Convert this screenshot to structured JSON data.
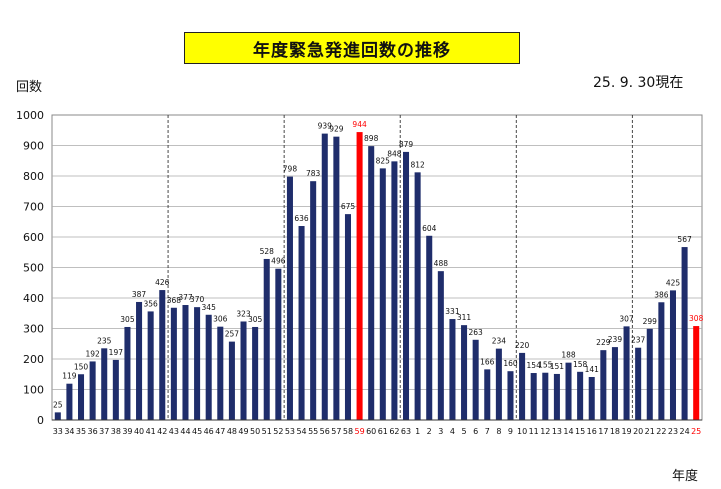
{
  "chart_data": {
    "type": "bar",
    "title": "年度緊急発進回数の推移",
    "ylabel": "回数",
    "xlabel": "年度",
    "date_note": "25. 9. 30現在",
    "ylim": [
      0,
      1000
    ],
    "yticks": [
      "0",
      "100",
      "200",
      "300",
      "400",
      "500",
      "600",
      "700",
      "800",
      "900",
      "1000"
    ],
    "grid": "horizontal",
    "categories": [
      "33",
      "34",
      "35",
      "36",
      "37",
      "38",
      "39",
      "40",
      "41",
      "42",
      "43",
      "44",
      "45",
      "46",
      "47",
      "48",
      "49",
      "50",
      "51",
      "52",
      "53",
      "54",
      "55",
      "56",
      "57",
      "58",
      "59",
      "60",
      "61",
      "62",
      "63",
      "1",
      "2",
      "3",
      "4",
      "5",
      "6",
      "7",
      "8",
      "9",
      "10",
      "11",
      "12",
      "13",
      "14",
      "15",
      "16",
      "17",
      "18",
      "19",
      "20",
      "21",
      "22",
      "23",
      "24",
      "25"
    ],
    "values": [
      25,
      119,
      150,
      192,
      235,
      197,
      305,
      387,
      356,
      426,
      368,
      377,
      370,
      345,
      306,
      257,
      323,
      305,
      528,
      496,
      798,
      636,
      783,
      939,
      929,
      675,
      944,
      898,
      825,
      848,
      879,
      812,
      604,
      488,
      331,
      311,
      263,
      166,
      234,
      160,
      220,
      154,
      155,
      151,
      188,
      158,
      141,
      229,
      239,
      307,
      237,
      299,
      386,
      425,
      567,
      308
    ],
    "highlight_red": [
      "59",
      "25"
    ],
    "era_dividers_after": [
      "42",
      "52",
      "62",
      "9",
      "19"
    ],
    "colors": {
      "bar": "#1f2d6b",
      "highlight": "#ff0000",
      "title_bg": "#ffff00"
    }
  }
}
